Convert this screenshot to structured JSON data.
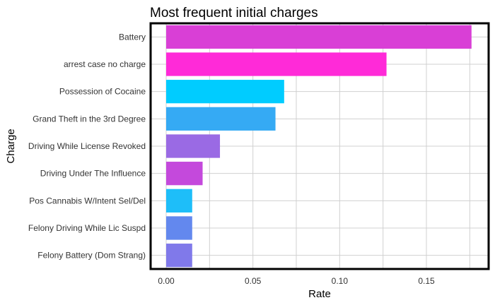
{
  "chart_data": {
    "type": "bar",
    "orientation": "horizontal",
    "title": "Most frequent initial charges",
    "xlabel": "Rate",
    "ylabel": "Charge",
    "xlim": [
      0,
      0.185
    ],
    "x_ticks": [
      "0.00",
      "0.05",
      "0.10",
      "0.15"
    ],
    "x_tick_values": [
      0,
      0.05,
      0.1,
      0.15
    ],
    "grid": true,
    "legend": "none",
    "categories": [
      "Battery",
      "arrest case no charge",
      "Possession of Cocaine",
      "Grand Theft in the 3rd Degree",
      "Driving While License Revoked",
      "Driving Under The Influence",
      "Pos Cannabis W/Intent Sel/Del",
      "Felony Driving While Lic Suspd",
      "Felony Battery (Dom Strang)"
    ],
    "values": [
      0.176,
      0.127,
      0.068,
      0.063,
      0.031,
      0.021,
      0.015,
      0.015,
      0.015
    ],
    "colors": [
      "#D93FD6",
      "#FF2AD8",
      "#00CCFF",
      "#35AAF4",
      "#9A6AE4",
      "#C449DC",
      "#1EBEF9",
      "#6388EE",
      "#8079EA"
    ]
  }
}
